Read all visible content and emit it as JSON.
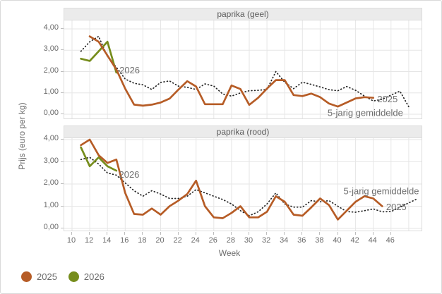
{
  "y_axis_label": "Prijs (euro per kg)",
  "x_axis_label": "Week",
  "legend": {
    "items": [
      {
        "label": "2025",
        "color": "#b65c26"
      },
      {
        "label": "2026",
        "color": "#768d1c"
      }
    ]
  },
  "colors": {
    "series_2025": "#b65c26",
    "series_2026": "#768d1c",
    "series_avg": "#262626",
    "grid": "#e6e6e6",
    "panel_strip_bg": "#ebebeb",
    "panel_border": "#dcdcdc",
    "tick_text": "#6b6b6b",
    "annotation_text": "#6f6f6f"
  },
  "chart_data": [
    {
      "type": "line",
      "title": "paprika (geel)",
      "ylabel": "Prijs (euro per kg)",
      "xlabel": "Week",
      "ylim": [
        0,
        4.4
      ],
      "grid": true,
      "xticks": [
        10,
        12,
        14,
        16,
        18,
        20,
        22,
        24,
        26,
        28,
        30,
        32,
        34,
        36,
        38,
        40,
        42,
        44,
        46
      ],
      "yticks": {
        "values": [
          0,
          1,
          2,
          3,
          4
        ],
        "labels": [
          "0,00",
          "1,00",
          "2,00",
          "3,00",
          "4,00"
        ]
      },
      "series": [
        {
          "name": "5-jarig gemiddelde",
          "style": "dotted",
          "color": "#262626",
          "week_start": 11,
          "values": [
            2.95,
            3.4,
            3.65,
            2.7,
            2.2,
            1.65,
            1.45,
            1.38,
            1.16,
            1.49,
            1.56,
            1.32,
            1.26,
            1.16,
            1.42,
            1.32,
            0.95,
            0.85,
            1.0,
            1.1,
            1.12,
            1.16,
            2.0,
            1.5,
            1.2,
            1.5,
            1.4,
            1.28,
            1.15,
            1.1,
            1.3,
            1.12,
            0.85,
            0.62,
            0.7,
            0.9,
            1.08,
            0.35
          ]
        },
        {
          "name": "2026",
          "style": "solid",
          "color": "#768d1c",
          "week_start": 11,
          "values": [
            2.6,
            2.5,
            2.95,
            3.4,
            1.95
          ]
        },
        {
          "name": "2025",
          "style": "solid",
          "color": "#b65c26",
          "week_start": 12,
          "values": [
            3.65,
            3.4,
            2.75,
            2.1,
            1.2,
            0.45,
            0.4,
            0.45,
            0.55,
            0.73,
            1.15,
            1.55,
            1.3,
            0.47,
            0.47,
            0.47,
            1.35,
            1.18,
            0.44,
            0.77,
            1.2,
            1.6,
            1.6,
            0.9,
            0.85,
            0.97,
            0.8,
            0.5,
            0.36,
            0.55,
            0.74,
            0.8,
            0.77
          ]
        }
      ],
      "annotations": [
        {
          "text": "2026",
          "week": 16.5,
          "value": 2.05
        },
        {
          "text": "2025",
          "week": 45.6,
          "value": 0.7
        },
        {
          "text": "5-jarig gemiddelde",
          "week": 43.1,
          "value": 0.05
        }
      ]
    },
    {
      "type": "line",
      "title": "paprika (rood)",
      "ylabel": "Prijs (euro per kg)",
      "xlabel": "Week",
      "ylim": [
        0,
        4.1
      ],
      "grid": true,
      "xticks": [
        10,
        12,
        14,
        16,
        18,
        20,
        22,
        24,
        26,
        28,
        30,
        32,
        34,
        36,
        38,
        40,
        42,
        44,
        46
      ],
      "yticks": {
        "values": [
          0,
          1,
          2,
          3,
          4
        ],
        "labels": [
          "0,00",
          "1,00",
          "2,00",
          "3,00",
          "4,00"
        ]
      },
      "series": [
        {
          "name": "5-jarig gemiddelde",
          "style": "dotted",
          "color": "#262626",
          "week_start": 11,
          "values": [
            3.1,
            3.2,
            2.9,
            2.5,
            2.4,
            2.05,
            1.7,
            1.45,
            1.7,
            1.55,
            1.35,
            1.35,
            1.45,
            1.75,
            1.6,
            1.45,
            1.3,
            1.1,
            0.8,
            0.57,
            0.75,
            1.1,
            1.6,
            1.1,
            0.96,
            0.96,
            1.25,
            1.2,
            1.25,
            1.0,
            0.76,
            0.73,
            0.8,
            0.88,
            0.75,
            0.76,
            0.96,
            1.15,
            1.34
          ]
        },
        {
          "name": "2026",
          "style": "solid",
          "color": "#768d1c",
          "week_start": 11,
          "values": [
            3.65,
            2.8,
            3.2,
            2.8,
            2.6
          ]
        },
        {
          "name": "2025",
          "style": "solid",
          "color": "#b65c26",
          "week_start": 11,
          "values": [
            3.75,
            4.0,
            3.3,
            2.95,
            3.1,
            1.6,
            0.65,
            0.62,
            0.9,
            0.62,
            1.0,
            1.25,
            1.55,
            2.15,
            1.0,
            0.5,
            0.46,
            0.7,
            1.0,
            0.5,
            0.5,
            0.75,
            1.45,
            1.2,
            0.62,
            0.57,
            0.95,
            1.35,
            1.05,
            0.4,
            0.8,
            1.2,
            1.45,
            1.35,
            1.0
          ]
        }
      ],
      "annotations": [
        {
          "text": "2026",
          "week": 16.45,
          "value": 2.41
        },
        {
          "text": "5-jarig gemiddelde",
          "week": 44.9,
          "value": 1.66
        },
        {
          "text": "2025",
          "week": 46.6,
          "value": 0.96
        }
      ]
    }
  ]
}
